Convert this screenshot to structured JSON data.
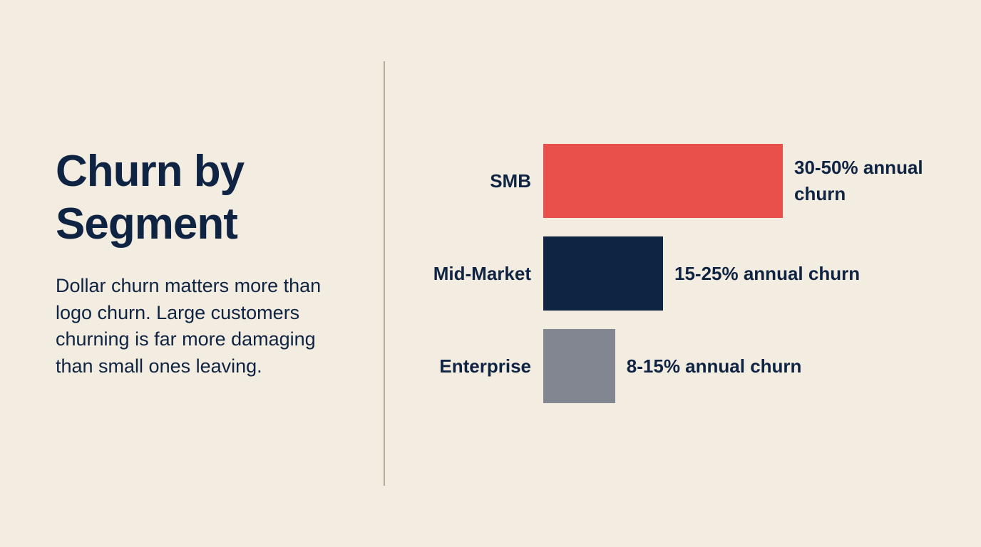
{
  "chart_data": {
    "type": "bar",
    "title": "Churn by Segment",
    "subtitle": "Dollar churn matters more than logo churn. Large customers churning is far more damaging than small ones leaving.",
    "categories": [
      "SMB",
      "Mid-Market",
      "Enterprise"
    ],
    "values": [
      50,
      25,
      15
    ],
    "value_labels": [
      "30-50% annual churn",
      "15-25% annual churn",
      "8-15% annual churn"
    ],
    "colors": [
      "#e8504b",
      "#0f2443",
      "#818690"
    ]
  }
}
